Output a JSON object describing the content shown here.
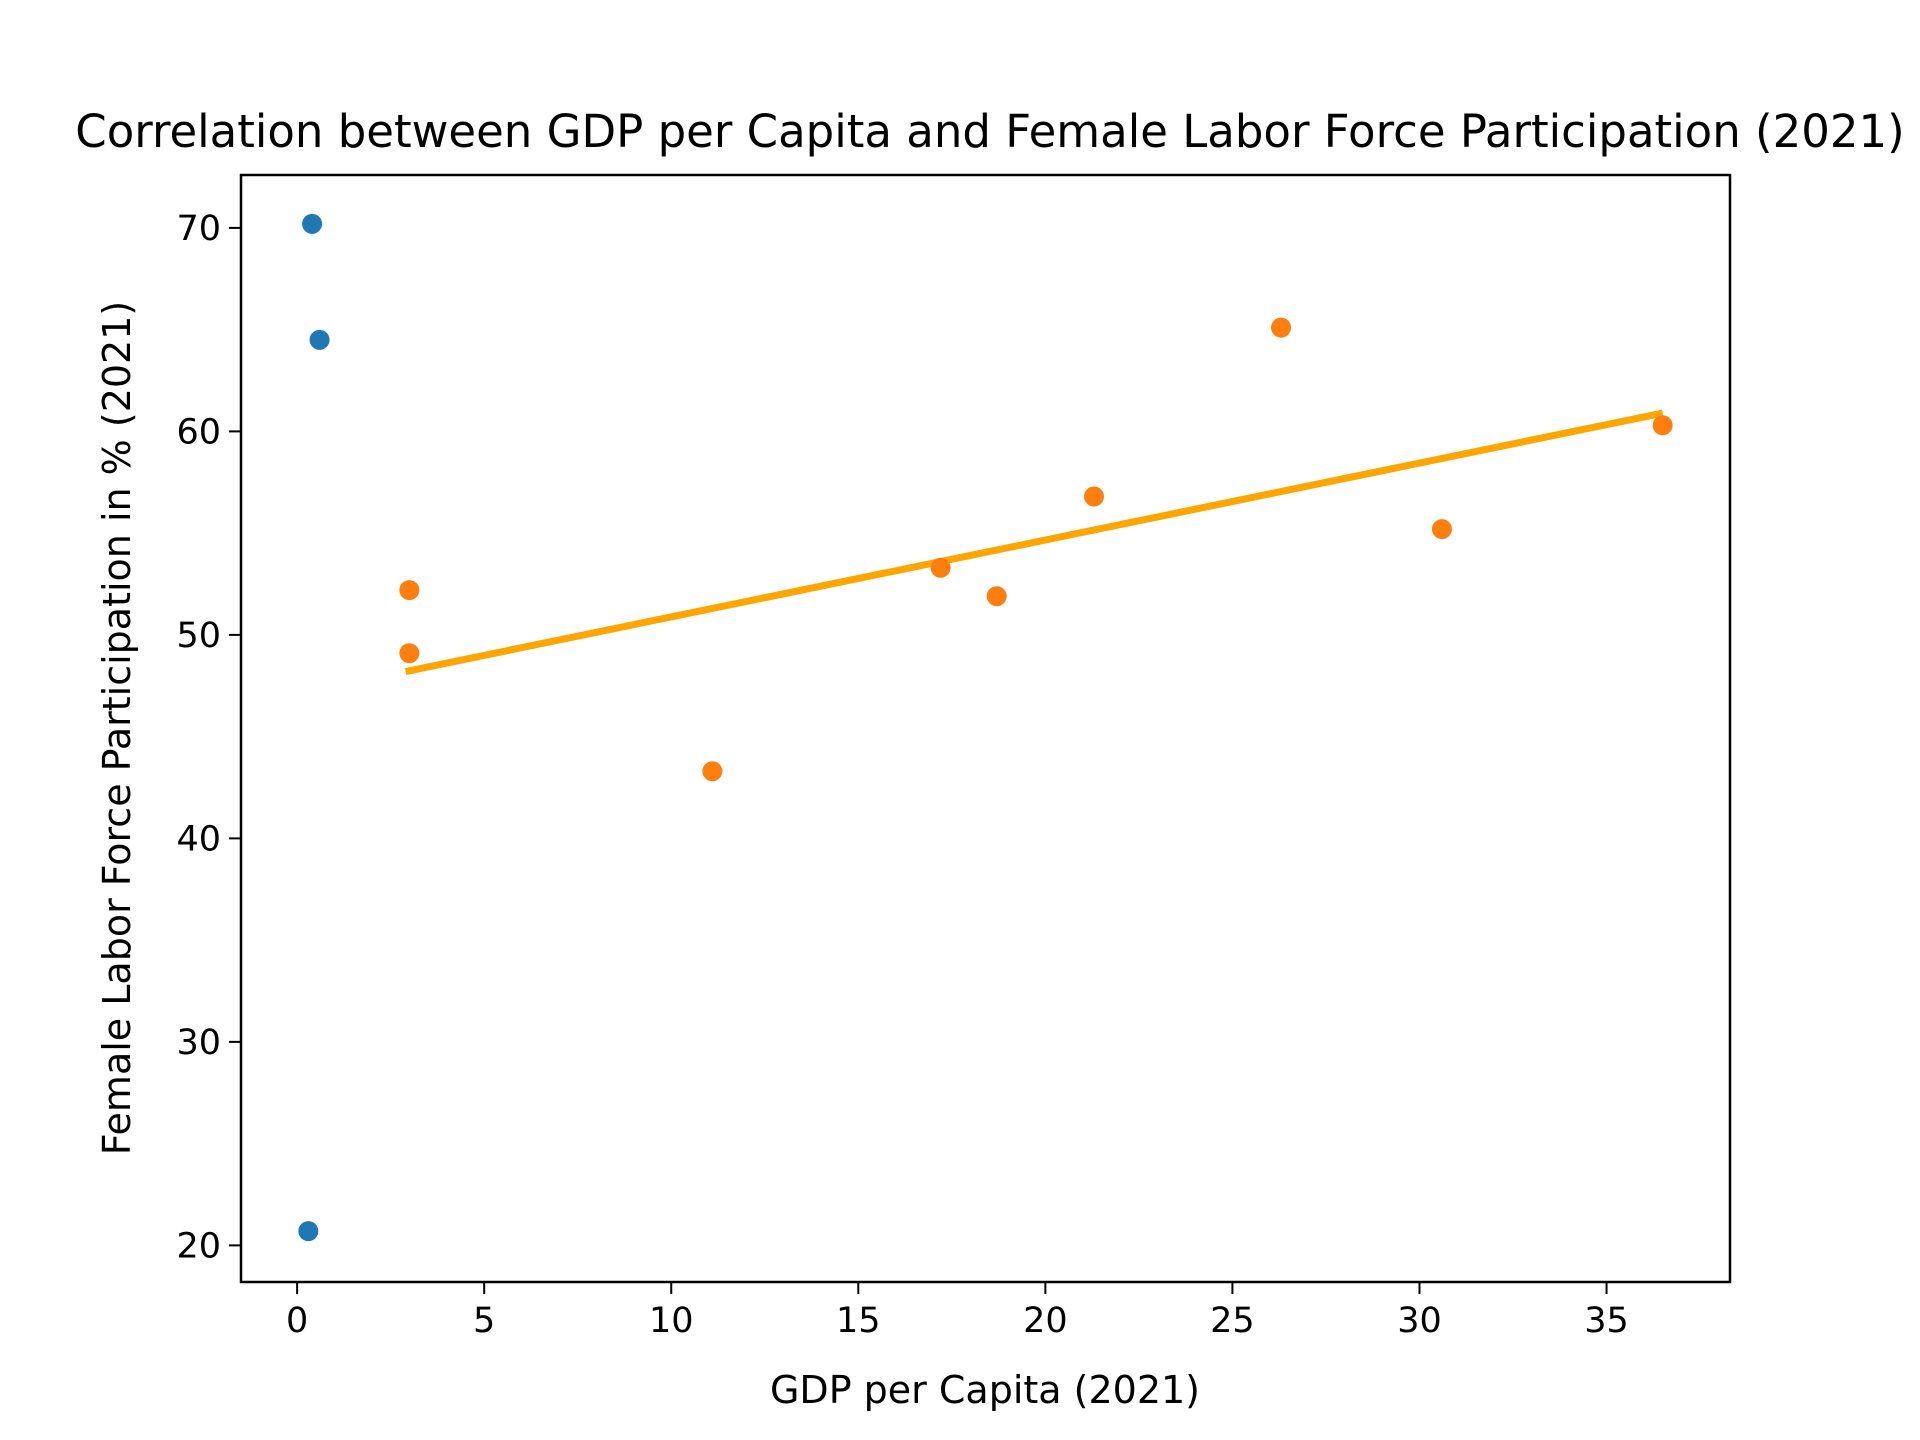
{
  "chart_data": {
    "type": "scatter",
    "title": "Correlation between GDP per Capita and Female Labor Force Participation (2021)",
    "xlabel": "GDP per Capita (2021)",
    "ylabel": "Female Labor Force Participation in % (2021)",
    "xlim": [
      -1.5,
      38.3
    ],
    "ylim": [
      18.2,
      72.6
    ],
    "xticks": [
      "0",
      "5",
      "10",
      "15",
      "20",
      "25",
      "30",
      "35"
    ],
    "yticks": [
      "20",
      "30",
      "40",
      "50",
      "60",
      "70"
    ],
    "grid": false,
    "legend": "none",
    "series": [
      {
        "color": "#1f77b4",
        "points": [
          {
            "x": 0.4,
            "y": 70.2
          },
          {
            "x": 0.6,
            "y": 64.5
          },
          {
            "x": 0.3,
            "y": 20.7
          }
        ]
      },
      {
        "color": "#ff7f0e",
        "points": [
          {
            "x": 3.0,
            "y": 52.2
          },
          {
            "x": 3.0,
            "y": 49.1
          },
          {
            "x": 11.1,
            "y": 43.3
          },
          {
            "x": 17.2,
            "y": 53.3
          },
          {
            "x": 18.7,
            "y": 51.9
          },
          {
            "x": 21.3,
            "y": 56.8
          },
          {
            "x": 26.3,
            "y": 65.1
          },
          {
            "x": 30.6,
            "y": 55.2
          },
          {
            "x": 36.5,
            "y": 60.3
          }
        ]
      }
    ],
    "trendline": {
      "color": "#ffa500",
      "start": {
        "x": 2.9,
        "y": 48.2
      },
      "end": {
        "x": 36.5,
        "y": 60.9
      }
    }
  }
}
